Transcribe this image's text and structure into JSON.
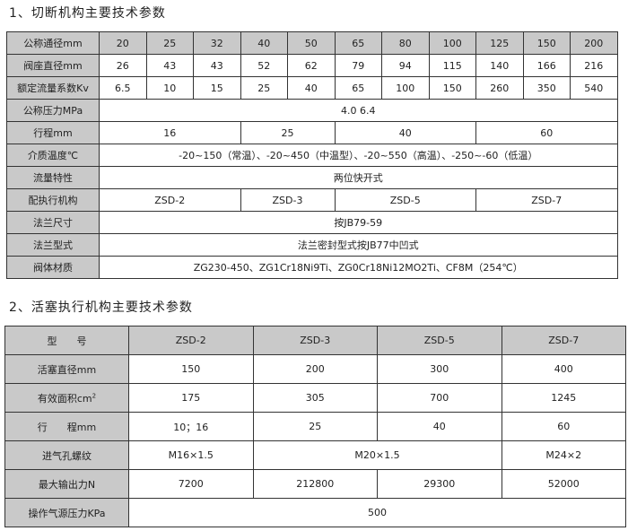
{
  "section1": {
    "title": "1、切断机构主要技术参数",
    "rows": {
      "dn": {
        "label": "公称通径mm",
        "values": [
          "20",
          "25",
          "32",
          "40",
          "50",
          "65",
          "80",
          "100",
          "125",
          "150",
          "200"
        ]
      },
      "seat": {
        "label": "阀座直径mm",
        "values": [
          "26",
          "43",
          "43",
          "52",
          "62",
          "79",
          "94",
          "115",
          "140",
          "166",
          "216"
        ]
      },
      "kv": {
        "label": "额定流量系数Kv",
        "values": [
          "6.5",
          "10",
          "15",
          "25",
          "40",
          "65",
          "100",
          "150",
          "260",
          "350",
          "540"
        ]
      },
      "pressure": {
        "label": "公称压力MPa",
        "value": "4.0        6.4"
      },
      "stroke": {
        "label": "行程mm",
        "values": [
          "16",
          "25",
          "40",
          "60"
        ]
      },
      "temp": {
        "label": "介质温度℃",
        "value": "-20~150（常温）、-20~450（中温型）、-20~550（高温）、-250~-60（低温）"
      },
      "flow": {
        "label": "流量特性",
        "value": "两位快开式"
      },
      "actuator": {
        "label": "配执行机构",
        "values": [
          "ZSD-2",
          "ZSD-3",
          "ZSD-5",
          "ZSD-7"
        ]
      },
      "flange_size": {
        "label": "法兰尺寸",
        "value": "按JB79-59"
      },
      "flange_type": {
        "label": "法兰型式",
        "value": "法兰密封型式按JB77中凹式"
      },
      "material": {
        "label": "阀体材质",
        "value": "ZG230-450、ZG1Cr18Ni9Ti、ZG0Cr18Ni12MO2Ti、CF8M（254℃）"
      }
    }
  },
  "section2": {
    "title": "2、活塞执行机构主要技术参数",
    "rows": {
      "model": {
        "label": "型　　号",
        "values": [
          "ZSD-2",
          "ZSD-3",
          "ZSD-5",
          "ZSD-7"
        ]
      },
      "piston": {
        "label": "活塞直径mm",
        "values": [
          "150",
          "200",
          "300",
          "400"
        ]
      },
      "area": {
        "label": "有效面积cm",
        "sup": "2",
        "values": [
          "175",
          "305",
          "700",
          "1245"
        ]
      },
      "stroke": {
        "label": "行　　程mm",
        "values": [
          "10；16",
          "25",
          "40",
          "60"
        ]
      },
      "thread": {
        "label": "进气孔螺纹",
        "values": [
          "M16×1.5",
          "M20×1.5",
          "M24×2"
        ]
      },
      "force": {
        "label": "最大输出力N",
        "values": [
          "7200",
          "212800",
          "29300",
          "52000"
        ]
      },
      "air": {
        "label": "操作气源压力KPa",
        "value": "500"
      }
    }
  }
}
